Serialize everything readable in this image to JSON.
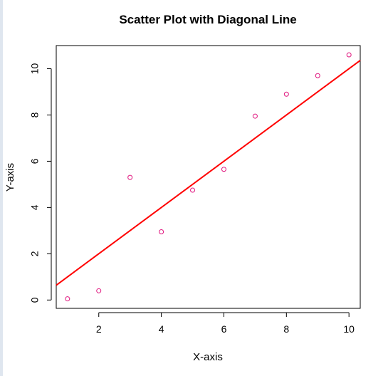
{
  "chart_data": {
    "type": "scatter",
    "title": "Scatter Plot with Diagonal Line",
    "xlabel": "X-axis",
    "ylabel": "Y-axis",
    "x": [
      1,
      2,
      3,
      4,
      5,
      6,
      7,
      8,
      9,
      10
    ],
    "y": [
      0.05,
      0.4,
      5.3,
      2.95,
      4.75,
      5.65,
      7.95,
      8.9,
      9.7,
      10.6
    ],
    "xlim": [
      0.64,
      10.36
    ],
    "ylim": [
      -0.36,
      11.0
    ],
    "xticks": [
      2,
      4,
      6,
      8,
      10
    ],
    "yticks": [
      0,
      2,
      4,
      6,
      8,
      10
    ],
    "line": {
      "type": "abline",
      "intercept": 0,
      "slope": 1,
      "color": "#ff0000"
    },
    "point_style": "open-circle",
    "point_color": "#e0147d",
    "grid": false,
    "legend": "none"
  }
}
